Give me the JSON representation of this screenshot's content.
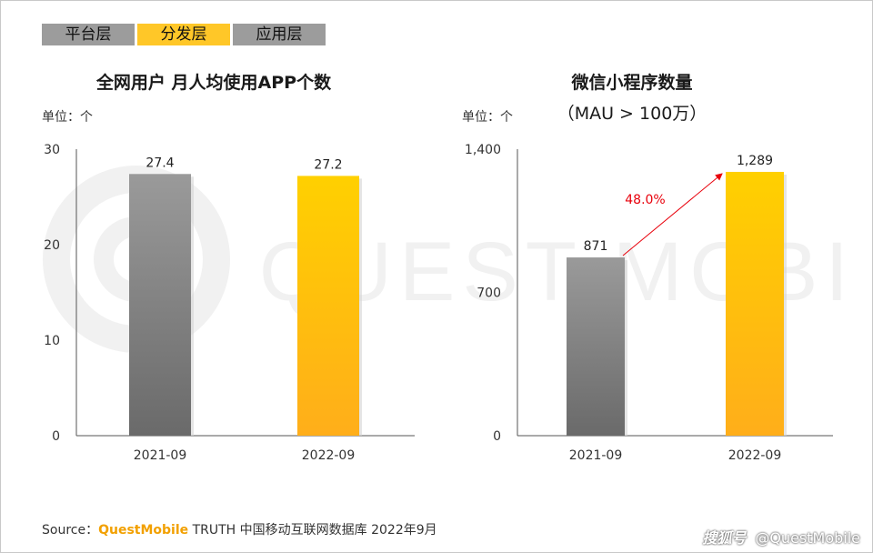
{
  "tabs": [
    "平台层",
    "分发层",
    "应用层"
  ],
  "active_tab": 1,
  "watermark_text": "QUEST MOBILE",
  "chart_data": [
    {
      "type": "bar",
      "title": "全网用户 月人均使用APP个数",
      "unit": "单位：个",
      "categories": [
        "2021-09",
        "2022-09"
      ],
      "values": [
        27.4,
        27.2
      ],
      "value_labels": [
        "27.4",
        "27.2"
      ],
      "ylim": [
        0,
        30
      ],
      "yticks": [
        0,
        10,
        20,
        30
      ],
      "ytick_labels": [
        "0",
        "10",
        "20",
        "30"
      ],
      "colors": [
        "#7f7f7f",
        "#ffc000"
      ],
      "grid": false
    },
    {
      "type": "bar",
      "title": "微信小程序数量",
      "subtitle": "（MAU > 100万）",
      "unit": "单位：个",
      "categories": [
        "2021-09",
        "2022-09"
      ],
      "values": [
        871,
        1289
      ],
      "value_labels": [
        "871",
        "1,289"
      ],
      "ylim": [
        0,
        1400
      ],
      "yticks": [
        0,
        700,
        1400
      ],
      "ytick_labels": [
        "0",
        "700",
        "1,400"
      ],
      "colors": [
        "#7f7f7f",
        "#ffc000"
      ],
      "growth_annotation": "48.0%",
      "growth_color": "#e8000b",
      "grid": false
    }
  ],
  "footer": {
    "source_prefix": "Source：",
    "source_brand": "QuestMobile",
    "source_text": " TRUTH 中国移动互联网数据库 2022年9月",
    "credit_logo": "搜狐号",
    "credit_text": "@QuestMobile"
  }
}
